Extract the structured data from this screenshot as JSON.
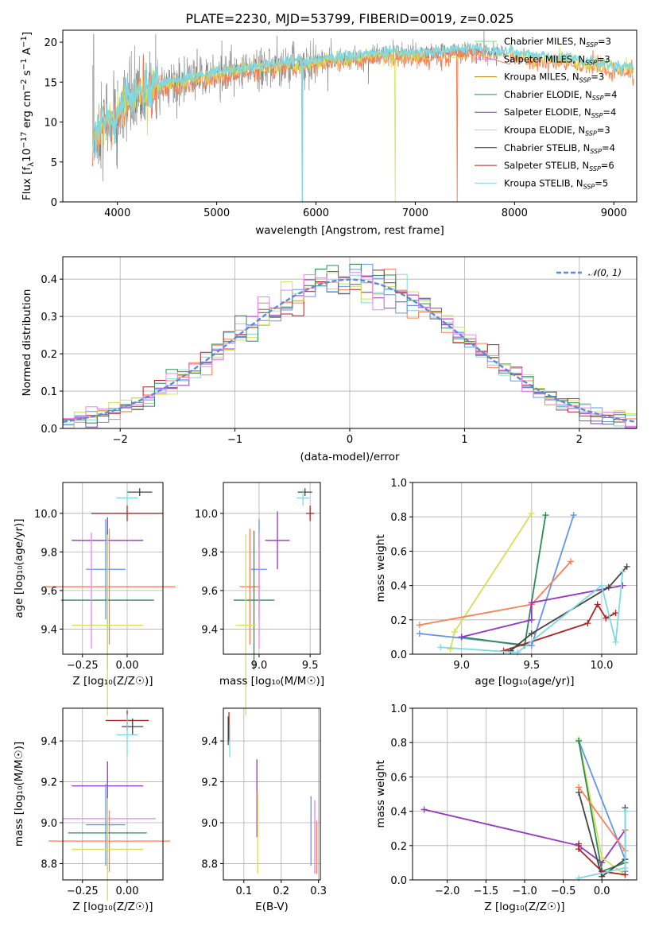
{
  "chart_data": [
    {
      "type": "line",
      "title": "PLATE=2230, MJD=53799, FIBERID=0019, z=0.025",
      "xlabel": "wavelength [Angstrom, rest frame]",
      "ylabel": "Flux [fλ10⁻¹⁷ erg cm⁻² s⁻¹ A⁻¹]",
      "xlim": [
        3450,
        9230
      ],
      "ylim": [
        0,
        21.5
      ],
      "xticks": [
        "4000",
        "5000",
        "6000",
        "7000",
        "8000",
        "9000"
      ],
      "yticks": [
        "0",
        "5",
        "10",
        "15",
        "20"
      ],
      "continuum": {
        "x": [
          3750,
          3850,
          3950,
          4050,
          4200,
          4400,
          4600,
          4800,
          5000,
          5200,
          5400,
          5600,
          5800,
          6000,
          6200,
          6400,
          6600,
          6800,
          7000,
          7200,
          7400,
          7600,
          7800,
          8000,
          8200,
          8500,
          8700,
          9000,
          9200
        ],
        "y": [
          7.0,
          9.5,
          10.5,
          12.0,
          13.5,
          14.5,
          15.0,
          15.5,
          16.0,
          16.3,
          16.7,
          17.0,
          17.2,
          17.5,
          17.8,
          18.0,
          18.3,
          18.5,
          18.3,
          18.5,
          18.8,
          19.0,
          18.6,
          18.4,
          18.0,
          17.8,
          17.3,
          16.8,
          16.5
        ]
      },
      "legend_position": "upper-right",
      "legend": [
        {
          "label": "Chabrier MILES, N",
          "sub": "SSP",
          "value": "=3",
          "color": "#77dd77"
        },
        {
          "label": "Salpeter MILES, N",
          "sub": "SSP",
          "value": "=3",
          "color": "#ee82ee"
        },
        {
          "label": "Kroupa MILES, N",
          "sub": "SSP",
          "value": "=3",
          "color": "#b8860b"
        },
        {
          "label": "Chabrier ELODIE, N",
          "sub": "SSP",
          "value": "=4",
          "color": "#2e8b57"
        },
        {
          "label": "Salpeter ELODIE, N",
          "sub": "SSP",
          "value": "=4",
          "color": "#9932cc"
        },
        {
          "label": "Kroupa ELODIE, N",
          "sub": "SSP",
          "value": "=3",
          "color": "#e6e600"
        },
        {
          "label": "Chabrier STELIB, N",
          "sub": "SSP",
          "value": "=4",
          "color": "#333333"
        },
        {
          "label": "Salpeter STELIB, N",
          "sub": "SSP",
          "value": "=6",
          "color": "#b22222"
        },
        {
          "label": "Kroupa STELIB, N",
          "sub": "SSP",
          "value": "=5",
          "color": "#7fd9e0"
        }
      ]
    },
    {
      "type": "step",
      "xlabel": "(data-model)/error",
      "ylabel": "Normed distribution",
      "xlim": [
        -2.5,
        2.5
      ],
      "ylim": [
        0,
        0.46
      ],
      "xticks": [
        "−2",
        "−1",
        "0",
        "1",
        "2"
      ],
      "yticks": [
        "0.0",
        "0.1",
        "0.2",
        "0.3",
        "0.4"
      ],
      "legend_label": "𝒩(0, 1)",
      "legend_position": "upper-right",
      "series_colors": [
        "#ff7f50",
        "#9932cc",
        "#7fd9e0",
        "#b22222",
        "#6495ed",
        "#d4e157",
        "#2e8b57",
        "#ee82ee"
      ]
    },
    {
      "type": "errorbar",
      "xlabel": "Z [log₁₀(Z/Z☉)]",
      "ylabel": "age  [log₁₀(age/yr)]",
      "xlim": [
        -0.36,
        0.2
      ],
      "ylim": [
        9.27,
        10.16
      ],
      "xticks": [
        "−0.25",
        "0.00"
      ],
      "xtick_values": [
        -0.25,
        0.0
      ],
      "yticks": [
        "9.4",
        "9.6",
        "9.8",
        "10.0"
      ],
      "ytick_values": [
        9.4,
        9.6,
        9.8,
        10.0
      ],
      "points": [
        {
          "x": 0.07,
          "y": 10.11,
          "xerr": 0.07,
          "yerr": 0.02,
          "color": "#444444"
        },
        {
          "x": 0.0,
          "y": 10.08,
          "xerr": 0.06,
          "yerr": 0.04,
          "color": "#7fd9e0"
        },
        {
          "x": 0.0,
          "y": 10.0,
          "xerr": 0.2,
          "yerr": 0.04,
          "color": "#b22222"
        },
        {
          "x": -0.11,
          "y": 9.86,
          "xerr": 0.2,
          "yerr": 0.12,
          "color": "#9932cc"
        },
        {
          "x": -0.12,
          "y": 9.71,
          "xerr": 0.11,
          "yerr": 0.26,
          "color": "#6495ed"
        },
        {
          "x": -0.1,
          "y": 9.62,
          "xerr": 0.37,
          "yerr": 0.3,
          "color": "#ff7f50"
        },
        {
          "x": -0.11,
          "y": 9.55,
          "xerr": 0.26,
          "yerr": 0.36,
          "color": "#2e8b57"
        },
        {
          "x": -0.11,
          "y": 9.42,
          "xerr": 0.2,
          "yerr": 0.47,
          "color": "#d4e157"
        },
        {
          "x": -0.2,
          "y": 9.6,
          "xerr": 0.0,
          "yerr": 0.3,
          "color": "#ee82ee"
        }
      ]
    },
    {
      "type": "errorbar",
      "xlabel": "mass [log₁₀(M/M☉)]",
      "xlim": [
        8.65,
        9.6
      ],
      "ylim": [
        9.27,
        10.16
      ],
      "xticks": [
        "9.0",
        "9.5"
      ],
      "xtick_values": [
        9.0,
        9.5
      ],
      "yticks": [
        "9.4",
        "9.6",
        "9.8",
        "10.0"
      ],
      "ytick_values": [
        9.4,
        9.6,
        9.8,
        10.0
      ],
      "points": [
        {
          "x": 9.45,
          "y": 10.11,
          "xerr": 0.07,
          "yerr": 0.02,
          "color": "#444444"
        },
        {
          "x": 9.43,
          "y": 10.08,
          "xerr": 0.06,
          "yerr": 0.04,
          "color": "#7fd9e0"
        },
        {
          "x": 9.5,
          "y": 10.0,
          "xerr": 0.04,
          "yerr": 0.04,
          "color": "#b22222"
        },
        {
          "x": 9.18,
          "y": 9.86,
          "xerr": 0.12,
          "yerr": 0.15,
          "color": "#9932cc"
        },
        {
          "x": 9.0,
          "y": 9.71,
          "xerr": 0.08,
          "yerr": 0.26,
          "color": "#6495ed"
        },
        {
          "x": 8.91,
          "y": 9.62,
          "xerr": 0.1,
          "yerr": 0.3,
          "color": "#ff7f50"
        },
        {
          "x": 8.95,
          "y": 9.55,
          "xerr": 0.2,
          "yerr": 0.36,
          "color": "#2e8b57"
        },
        {
          "x": 8.87,
          "y": 9.42,
          "xerr": 0.1,
          "yerr": 0.47,
          "color": "#d4e157"
        },
        {
          "x": 9.0,
          "y": 9.6,
          "xerr": 0.0,
          "yerr": 0.3,
          "color": "#ee82ee"
        }
      ]
    },
    {
      "type": "line",
      "xlabel": "age  [log₁₀(age/yr)]",
      "ylabel": "mass weight",
      "xlim": [
        8.65,
        10.25
      ],
      "ylim": [
        0,
        1
      ],
      "xticks": [
        "8.5",
        "9.0",
        "9.5",
        "10.0"
      ],
      "xtick_values": [
        8.5,
        9.0,
        9.5,
        10.0
      ],
      "yticks": [
        "0.0",
        "0.2",
        "0.4",
        "0.6",
        "0.8",
        "1.0"
      ],
      "ytick_values": [
        0,
        0.2,
        0.4,
        0.6,
        0.8,
        1.0
      ],
      "series": [
        {
          "color": "#d4e157",
          "x": [
            8.92,
            8.95,
            9.5
          ],
          "y": [
            0.03,
            0.13,
            0.82
          ]
        },
        {
          "color": "#6495ed",
          "x": [
            8.7,
            9.5,
            9.8
          ],
          "y": [
            0.12,
            0.05,
            0.81
          ]
        },
        {
          "color": "#2e8b57",
          "x": [
            9.0,
            9.45,
            9.6
          ],
          "y": [
            0.1,
            0.05,
            0.81
          ]
        },
        {
          "color": "#ff7f50",
          "x": [
            8.7,
            9.5,
            9.78
          ],
          "y": [
            0.17,
            0.29,
            0.54
          ]
        },
        {
          "color": "#9932cc",
          "x": [
            9.0,
            9.5,
            9.5,
            10.15
          ],
          "y": [
            0.1,
            0.2,
            0.3,
            0.4
          ]
        },
        {
          "color": "#b22222",
          "x": [
            9.3,
            9.9,
            9.97,
            10.03,
            10.1
          ],
          "y": [
            0.02,
            0.18,
            0.29,
            0.21,
            0.24
          ]
        },
        {
          "color": "#444444",
          "x": [
            9.35,
            9.5,
            10.05,
            10.18
          ],
          "y": [
            0.02,
            0.12,
            0.39,
            0.51
          ]
        },
        {
          "color": "#7fd9e0",
          "x": [
            8.85,
            9.4,
            10.0,
            10.1,
            10.15
          ],
          "y": [
            0.04,
            0.01,
            0.4,
            0.07,
            0.48
          ]
        }
      ]
    },
    {
      "type": "errorbar",
      "xlabel": "Z [log₁₀(Z/Z☉)]",
      "ylabel": "mass [log₁₀(M/M☉)]",
      "xlim": [
        -0.36,
        0.2
      ],
      "ylim": [
        8.72,
        9.56
      ],
      "xticks": [
        "−0.25",
        "0.00"
      ],
      "xtick_values": [
        -0.25,
        0.0
      ],
      "yticks": [
        "8.8",
        "9.0",
        "9.2",
        "9.4"
      ],
      "ytick_values": [
        8.8,
        9.0,
        9.2,
        9.4
      ],
      "points": [
        {
          "x": 0.0,
          "y": 9.5,
          "xerr": 0.12,
          "yerr": 0.05,
          "color": "#b22222"
        },
        {
          "x": 0.03,
          "y": 9.47,
          "xerr": 0.06,
          "yerr": 0.04,
          "color": "#444444"
        },
        {
          "x": 0.0,
          "y": 9.43,
          "xerr": 0.06,
          "yerr": 0.1,
          "color": "#7fd9e0"
        },
        {
          "x": -0.11,
          "y": 9.18,
          "xerr": 0.2,
          "yerr": 0.12,
          "color": "#9932cc"
        },
        {
          "x": -0.12,
          "y": 8.99,
          "xerr": 0.11,
          "yerr": 0.2,
          "color": "#6495ed"
        },
        {
          "x": -0.1,
          "y": 9.02,
          "xerr": 0.26,
          "yerr": 0.0,
          "color": "#ee82ee"
        },
        {
          "x": -0.1,
          "y": 8.91,
          "xerr": 0.34,
          "yerr": 0.15,
          "color": "#ff7f50"
        },
        {
          "x": -0.11,
          "y": 8.95,
          "xerr": 0.22,
          "yerr": 0.18,
          "color": "#2e8b57"
        },
        {
          "x": -0.11,
          "y": 8.87,
          "xerr": 0.2,
          "yerr": 0.25,
          "color": "#d4e157"
        }
      ]
    },
    {
      "type": "errorbar",
      "xlabel": "E(B-V)",
      "xlim": [
        0.045,
        0.305
      ],
      "ylim": [
        8.72,
        9.56
      ],
      "xticks": [
        "0.1",
        "0.2",
        "0.3"
      ],
      "xtick_values": [
        0.1,
        0.2,
        0.3
      ],
      "yticks": [
        "8.8",
        "9.0",
        "9.2",
        "9.4"
      ],
      "ytick_values": [
        8.8,
        9.0,
        9.2,
        9.4
      ],
      "points": [
        {
          "x": 0.06,
          "y": 9.47,
          "xerr": 0.0,
          "yerr": 0.07,
          "color": "#b22222"
        },
        {
          "x": 0.058,
          "y": 9.45,
          "xerr": 0.0,
          "yerr": 0.07,
          "color": "#444444"
        },
        {
          "x": 0.062,
          "y": 9.4,
          "xerr": 0.0,
          "yerr": 0.08,
          "color": "#7fd9e0"
        },
        {
          "x": 0.135,
          "y": 9.12,
          "xerr": 0.0,
          "yerr": 0.19,
          "color": "#9932cc"
        },
        {
          "x": 0.137,
          "y": 8.95,
          "xerr": 0.0,
          "yerr": 0.2,
          "color": "#d4e157"
        },
        {
          "x": 0.28,
          "y": 8.96,
          "xerr": 0.0,
          "yerr": 0.17,
          "color": "#6495ed"
        },
        {
          "x": 0.29,
          "y": 8.93,
          "xerr": 0.0,
          "yerr": 0.18,
          "color": "#ee82ee"
        },
        {
          "x": 0.295,
          "y": 8.88,
          "xerr": 0.0,
          "yerr": 0.13,
          "color": "#ff7f50"
        }
      ]
    },
    {
      "type": "line",
      "xlabel": "Z [log₁₀(Z/Z☉)]",
      "ylabel": "mass weight",
      "xlim": [
        -2.45,
        0.45
      ],
      "ylim": [
        0,
        1
      ],
      "xticks": [
        "−2.0",
        "−1.5",
        "−1.0",
        "−0.5",
        "0.0"
      ],
      "xtick_values": [
        -2.0,
        -1.5,
        -1.0,
        -0.5,
        0.0
      ],
      "yticks": [
        "0.0",
        "0.2",
        "0.4",
        "0.6",
        "0.8",
        "1.0"
      ],
      "ytick_values": [
        0,
        0.2,
        0.4,
        0.6,
        0.8,
        1.0
      ],
      "series": [
        {
          "color": "#9932cc",
          "x": [
            -2.3,
            -0.3,
            0.0,
            0.3
          ],
          "y": [
            0.41,
            0.2,
            0.1,
            0.29
          ]
        },
        {
          "color": "#d4e157",
          "x": [
            -0.3,
            0.0,
            0.3
          ],
          "y": [
            0.82,
            0.13,
            0.03
          ]
        },
        {
          "color": "#6495ed",
          "x": [
            -0.3,
            0.3,
            0.3
          ],
          "y": [
            0.81,
            0.12,
            0.05
          ]
        },
        {
          "color": "#2e8b57",
          "x": [
            -0.3,
            0.0,
            0.3
          ],
          "y": [
            0.81,
            0.05,
            0.1
          ]
        },
        {
          "color": "#ff7f50",
          "x": [
            -0.3,
            0.3,
            0.3
          ],
          "y": [
            0.54,
            0.17,
            0.29
          ]
        },
        {
          "color": "#b22222",
          "x": [
            -0.3,
            -0.3,
            0.0,
            0.3
          ],
          "y": [
            0.21,
            0.18,
            0.05,
            0.03
          ]
        },
        {
          "color": "#444444",
          "x": [
            -0.3,
            0.0,
            0.3,
            0.3
          ],
          "y": [
            0.51,
            0.02,
            0.12,
            0.42
          ]
        },
        {
          "color": "#7fd9e0",
          "x": [
            -0.3,
            0.3,
            0.3
          ],
          "y": [
            0.01,
            0.07,
            0.4
          ]
        }
      ]
    }
  ]
}
